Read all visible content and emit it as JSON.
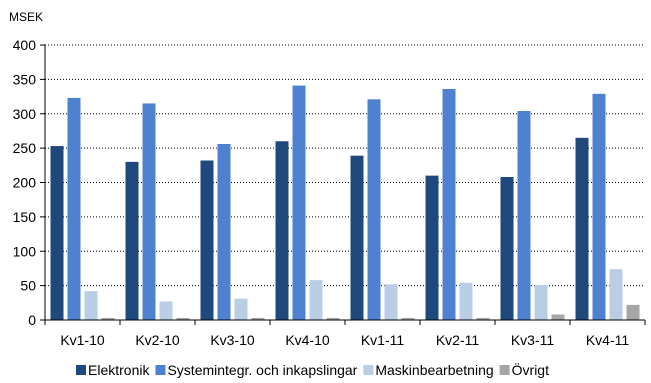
{
  "chart_data": {
    "type": "bar",
    "unit_label": "MSEK",
    "title": "",
    "xlabel": "",
    "ylabel": "",
    "categories": [
      "Kv1-10",
      "Kv2-10",
      "Kv3-10",
      "Kv4-10",
      "Kv1-11",
      "Kv2-11",
      "Kv3-11",
      "Kv4-11"
    ],
    "ylim": [
      0,
      400
    ],
    "yticks": [
      0,
      50,
      100,
      150,
      200,
      250,
      300,
      350,
      400
    ],
    "grid": "horizontal-dotted",
    "legend_position": "bottom",
    "series": [
      {
        "name": "Elektronik",
        "color": "#1f497d",
        "values": [
          253,
          230,
          232,
          260,
          239,
          210,
          208,
          265
        ]
      },
      {
        "name": "Systemintegr. och inkapslingar",
        "color": "#4f81d1",
        "values": [
          323,
          315,
          256,
          341,
          321,
          336,
          304,
          329
        ]
      },
      {
        "name": "Maskinbearbetning",
        "color": "#b9cde5",
        "values": [
          42,
          27,
          31,
          58,
          52,
          54,
          51,
          74
        ]
      },
      {
        "name": "Övrigt",
        "color": "#a6a6a6",
        "values": [
          3,
          3,
          3,
          3,
          3,
          3,
          8,
          22
        ]
      }
    ]
  }
}
